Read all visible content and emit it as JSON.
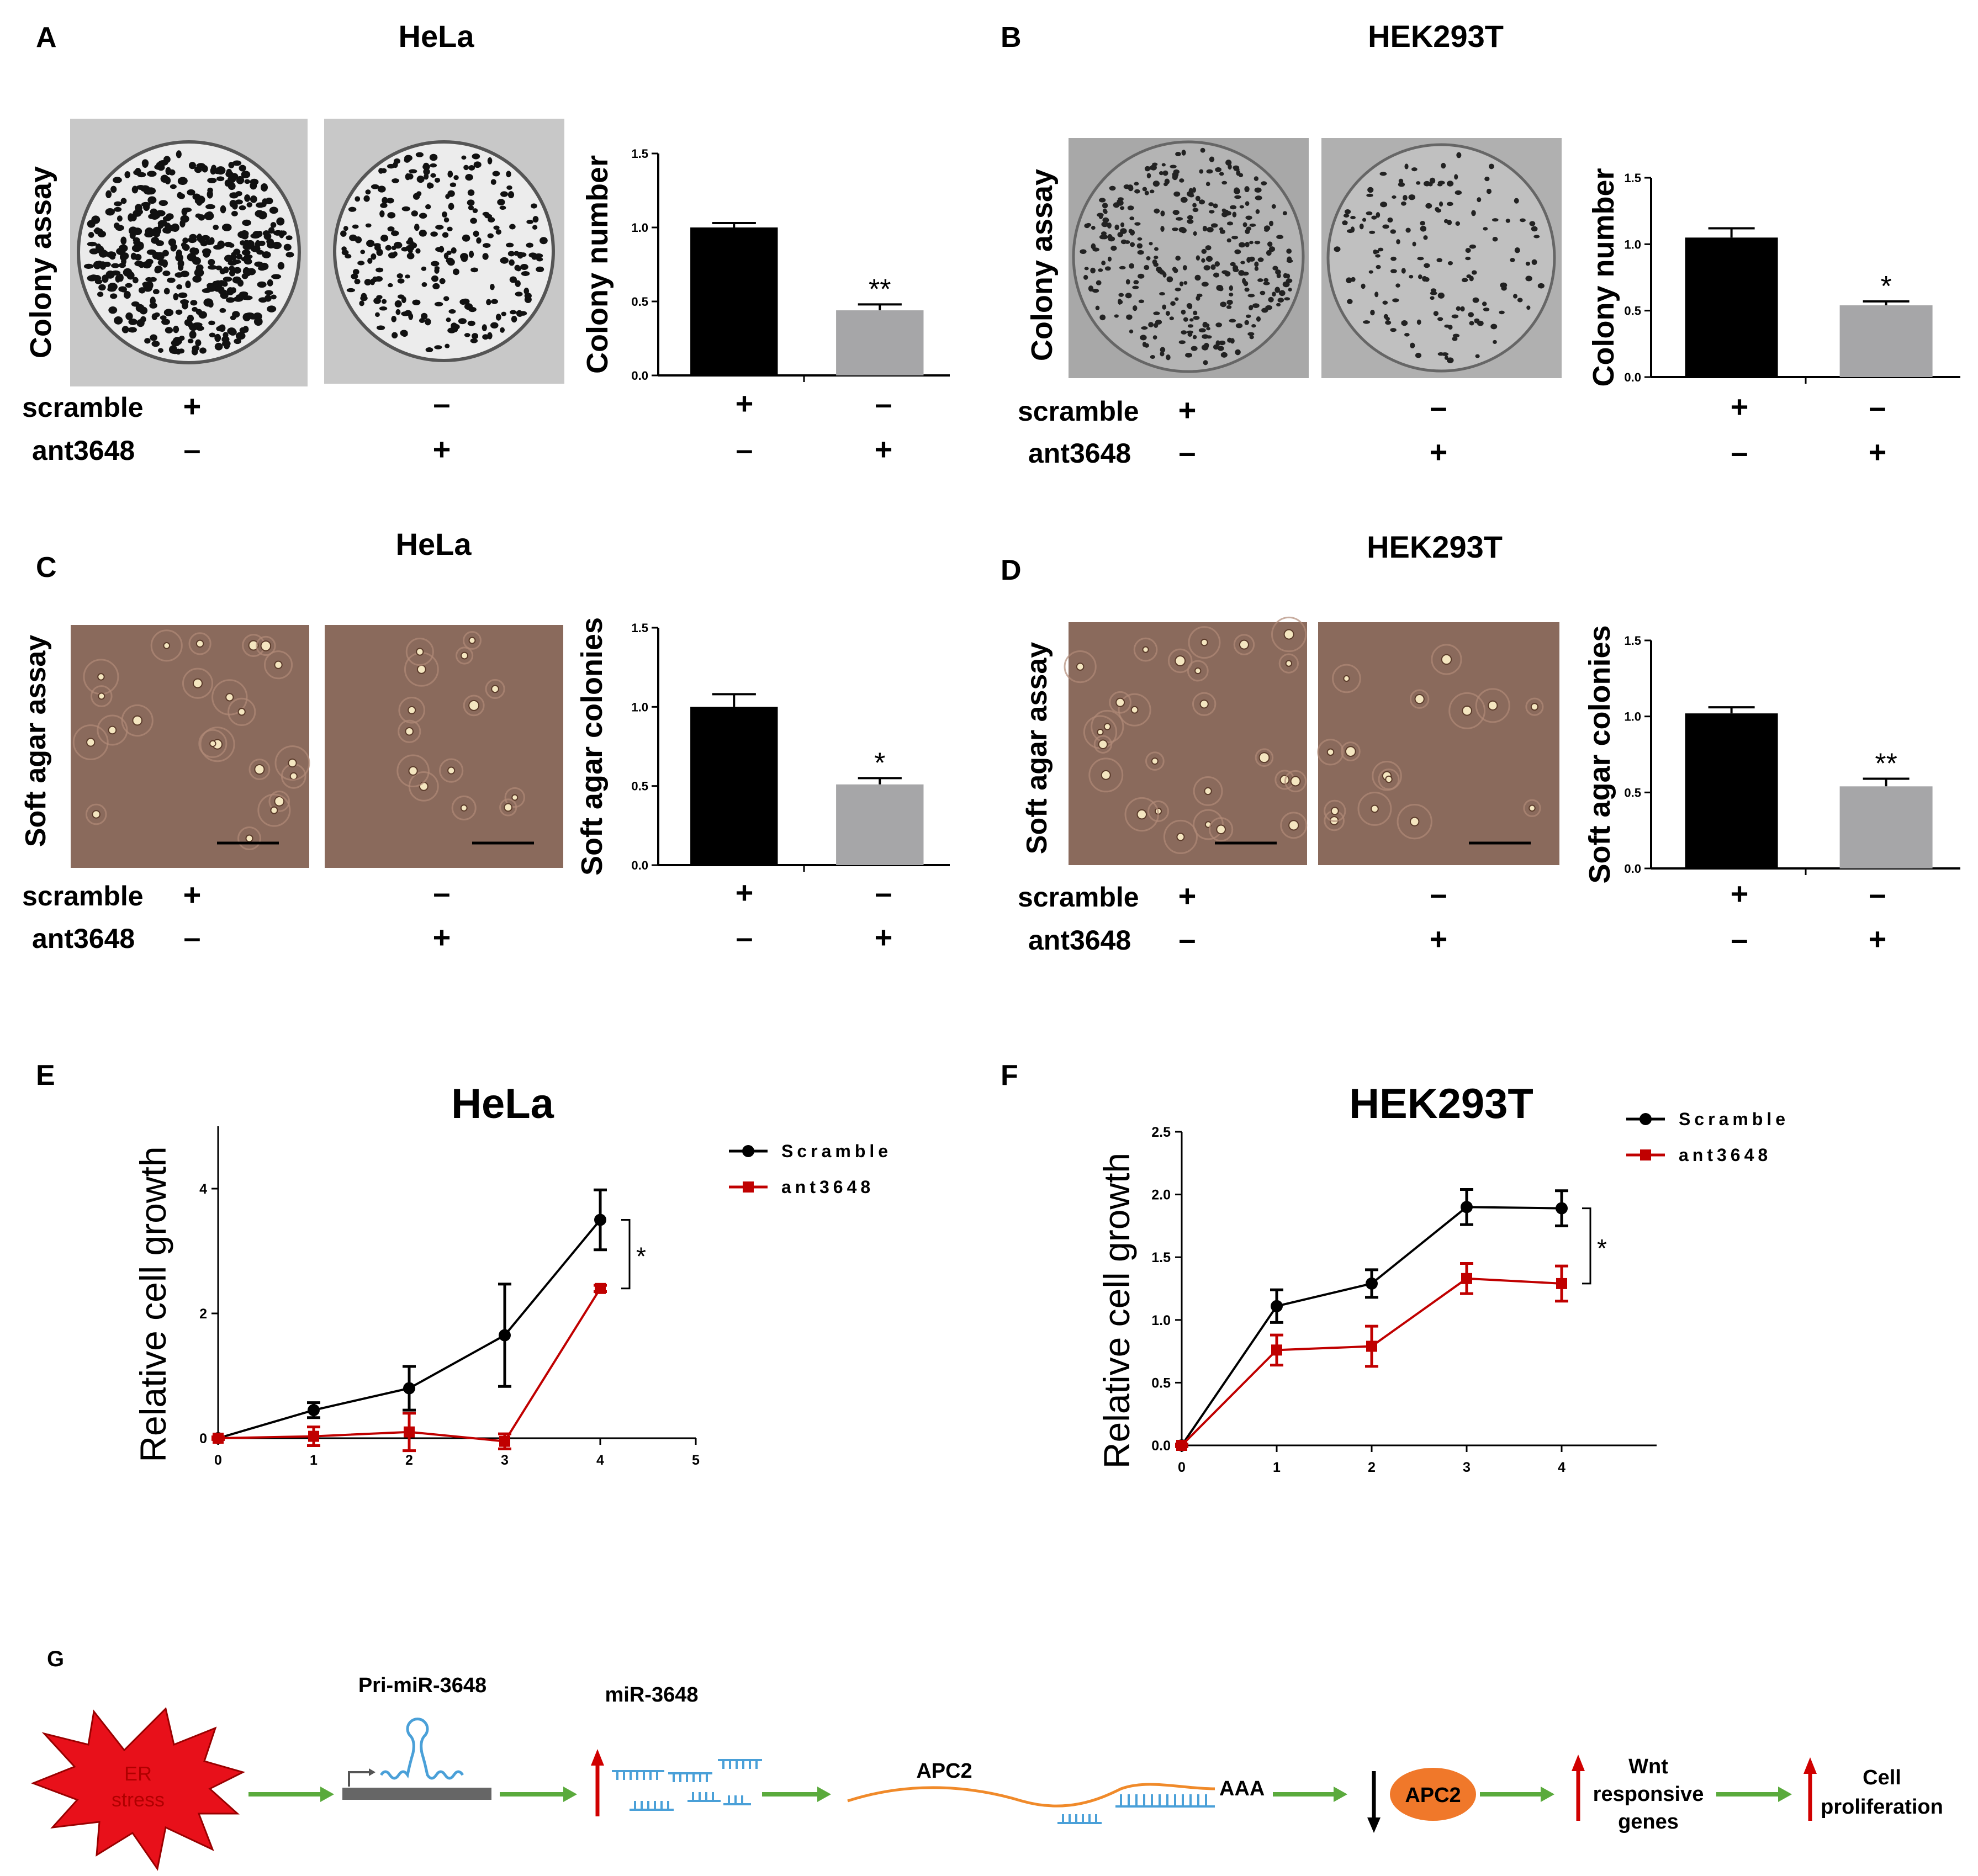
{
  "panels": {
    "A": {
      "letter": "A",
      "cell": "HeLa",
      "assay_label": "Colony  assay"
    },
    "B": {
      "letter": "B",
      "cell": "HEK293T",
      "assay_label": "Colony  assay"
    },
    "C": {
      "letter": "C",
      "cell": "HeLa",
      "assay_label": "Soft agar assay"
    },
    "D": {
      "letter": "D",
      "cell": "HEK293T",
      "assay_label": "Soft agar assay"
    },
    "E": {
      "letter": "E",
      "cell": "HeLa"
    },
    "F": {
      "letter": "F",
      "cell": "HEK293T"
    },
    "G": {
      "letter": "G"
    }
  },
  "conditions": {
    "scramble": "scramble",
    "ant3648": "ant3648",
    "plus": "+",
    "minus": "–"
  },
  "colors": {
    "bar_black": "#000000",
    "bar_gray": "#a6a6a8",
    "series_red": "#c00000",
    "arrow_green": "#5aaa3c",
    "arrow_red": "#d00000",
    "rna_blue": "#4aa0d8",
    "mrna_orange": "#f08a2a",
    "er_red": "#e8101a",
    "apc2_oval": "#f0782a"
  },
  "chart_data": [
    {
      "id": "A",
      "type": "bar",
      "title": "HeLa",
      "ylabel": "Colony  number",
      "ylim": [
        0,
        1.5
      ],
      "yticks": [
        "0.0",
        "0.5",
        "1.0",
        "1.5"
      ],
      "categories": [
        "scramble",
        "ant3648"
      ],
      "values": [
        1.0,
        0.44
      ],
      "errors": [
        0.03,
        0.04
      ],
      "significance": [
        "",
        "**"
      ]
    },
    {
      "id": "B",
      "type": "bar",
      "title": "HEK293T",
      "ylabel": "Colony  number",
      "ylim": [
        0,
        1.5
      ],
      "yticks": [
        "0.0",
        "0.5",
        "1.0",
        "1.5"
      ],
      "categories": [
        "scramble",
        "ant3648"
      ],
      "values": [
        1.05,
        0.54
      ],
      "errors": [
        0.07,
        0.03
      ],
      "significance": [
        "",
        "*"
      ]
    },
    {
      "id": "C",
      "type": "bar",
      "title": "HeLa",
      "ylabel": "Soft agar colonies",
      "ylim": [
        0,
        1.5
      ],
      "yticks": [
        "0.0",
        "0.5",
        "1.0",
        "1.5"
      ],
      "categories": [
        "scramble",
        "ant3648"
      ],
      "values": [
        1.0,
        0.51
      ],
      "errors": [
        0.08,
        0.04
      ],
      "significance": [
        "",
        "*"
      ]
    },
    {
      "id": "D",
      "type": "bar",
      "title": "HEK293T",
      "ylabel": "Soft agar colonies",
      "ylim": [
        0,
        1.5
      ],
      "yticks": [
        "0.0",
        "0.5",
        "1.0",
        "1.5"
      ],
      "categories": [
        "scramble",
        "ant3648"
      ],
      "values": [
        1.02,
        0.54
      ],
      "errors": [
        0.04,
        0.05
      ],
      "significance": [
        "",
        "**"
      ]
    },
    {
      "id": "E",
      "type": "line",
      "title": "HeLa",
      "ylabel": "Relative cell growth",
      "xlim": [
        0,
        5
      ],
      "ylim": [
        0,
        5
      ],
      "xticks": [
        "0",
        "1",
        "2",
        "3",
        "4",
        "5"
      ],
      "yticks": [
        "0",
        "2",
        "4"
      ],
      "series": [
        {
          "name": "Scramble",
          "x": [
            0,
            1,
            2,
            3,
            4
          ],
          "y": [
            0,
            0.45,
            0.8,
            1.65,
            3.5
          ],
          "err": [
            0.02,
            0.12,
            0.35,
            0.82,
            0.48
          ]
        },
        {
          "name": "ant3648",
          "x": [
            0,
            1,
            2,
            3,
            4
          ],
          "y": [
            0,
            0.03,
            0.1,
            -0.05,
            2.4
          ],
          "err": [
            0.02,
            0.15,
            0.3,
            0.12,
            0.05
          ]
        }
      ],
      "significance": "*"
    },
    {
      "id": "F",
      "type": "line",
      "title": "HEK293T",
      "ylabel": "Relative cell growth",
      "xlim": [
        0,
        5
      ],
      "ylim": [
        0,
        2.5
      ],
      "xticks": [
        "0",
        "1",
        "2",
        "3",
        "4"
      ],
      "yticks": [
        "0.0",
        "0.5",
        "1.0",
        "1.5",
        "2.0",
        "2.5"
      ],
      "series": [
        {
          "name": "Scramble",
          "x": [
            0,
            1,
            2,
            3,
            4
          ],
          "y": [
            0,
            1.11,
            1.29,
            1.9,
            1.89
          ],
          "err": [
            0.01,
            0.13,
            0.11,
            0.14,
            0.14
          ]
        },
        {
          "name": "ant3648",
          "x": [
            0,
            1,
            2,
            3,
            4
          ],
          "y": [
            0,
            0.76,
            0.79,
            1.33,
            1.29
          ],
          "err": [
            0.01,
            0.12,
            0.16,
            0.12,
            0.14
          ]
        }
      ],
      "significance": "*"
    }
  ],
  "pathway": {
    "er_stress": "ER\nstress",
    "pri_mir": "Pri-miR-3648",
    "mir": "miR-3648",
    "apc2_mrna": "APC2",
    "polya": "AAA",
    "apc2_protein": "APC2",
    "wnt": "Wnt\nresponsive\ngenes",
    "cell_prolif": "Cell\nproliferation"
  }
}
